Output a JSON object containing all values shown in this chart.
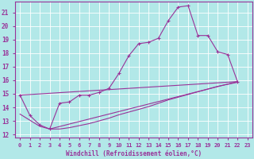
{
  "background_color": "#b2e8e8",
  "line_color": "#993399",
  "grid_color": "#ffffff",
  "xlim": [
    -0.5,
    23.5
  ],
  "ylim": [
    11.8,
    21.8
  ],
  "xticks": [
    0,
    1,
    2,
    3,
    4,
    5,
    6,
    7,
    8,
    9,
    10,
    11,
    12,
    13,
    14,
    15,
    16,
    17,
    18,
    19,
    20,
    21,
    22,
    23
  ],
  "yticks": [
    12,
    13,
    14,
    15,
    16,
    17,
    18,
    19,
    20,
    21
  ],
  "xlabel": "Windchill (Refroidissement éolien,°C)",
  "line1_x": [
    0,
    1,
    2,
    3,
    4,
    5,
    6,
    7,
    8,
    9,
    10,
    11,
    12,
    13,
    14,
    15,
    16,
    17,
    18,
    19,
    20,
    21,
    22
  ],
  "line1_y": [
    14.9,
    13.4,
    12.7,
    12.4,
    14.3,
    14.4,
    14.9,
    14.9,
    15.1,
    15.4,
    16.5,
    17.8,
    18.7,
    18.8,
    19.1,
    20.4,
    21.4,
    21.5,
    19.3,
    19.3,
    18.1,
    17.9,
    15.9
  ],
  "line2_x": [
    0,
    1,
    2,
    3,
    4,
    5,
    6,
    7,
    8,
    9,
    10,
    11,
    12,
    13,
    14,
    15,
    16,
    17,
    18,
    19,
    20,
    21,
    22
  ],
  "line2_y": [
    13.5,
    13.05,
    12.6,
    12.4,
    12.4,
    12.5,
    12.65,
    12.8,
    13.0,
    13.2,
    13.45,
    13.65,
    13.85,
    14.05,
    14.3,
    14.55,
    14.75,
    14.95,
    15.15,
    15.35,
    15.55,
    15.7,
    15.85
  ],
  "line3_x": [
    0,
    22
  ],
  "line3_y": [
    14.9,
    15.9
  ],
  "line4_x": [
    3,
    22
  ],
  "line4_y": [
    12.4,
    15.9
  ]
}
